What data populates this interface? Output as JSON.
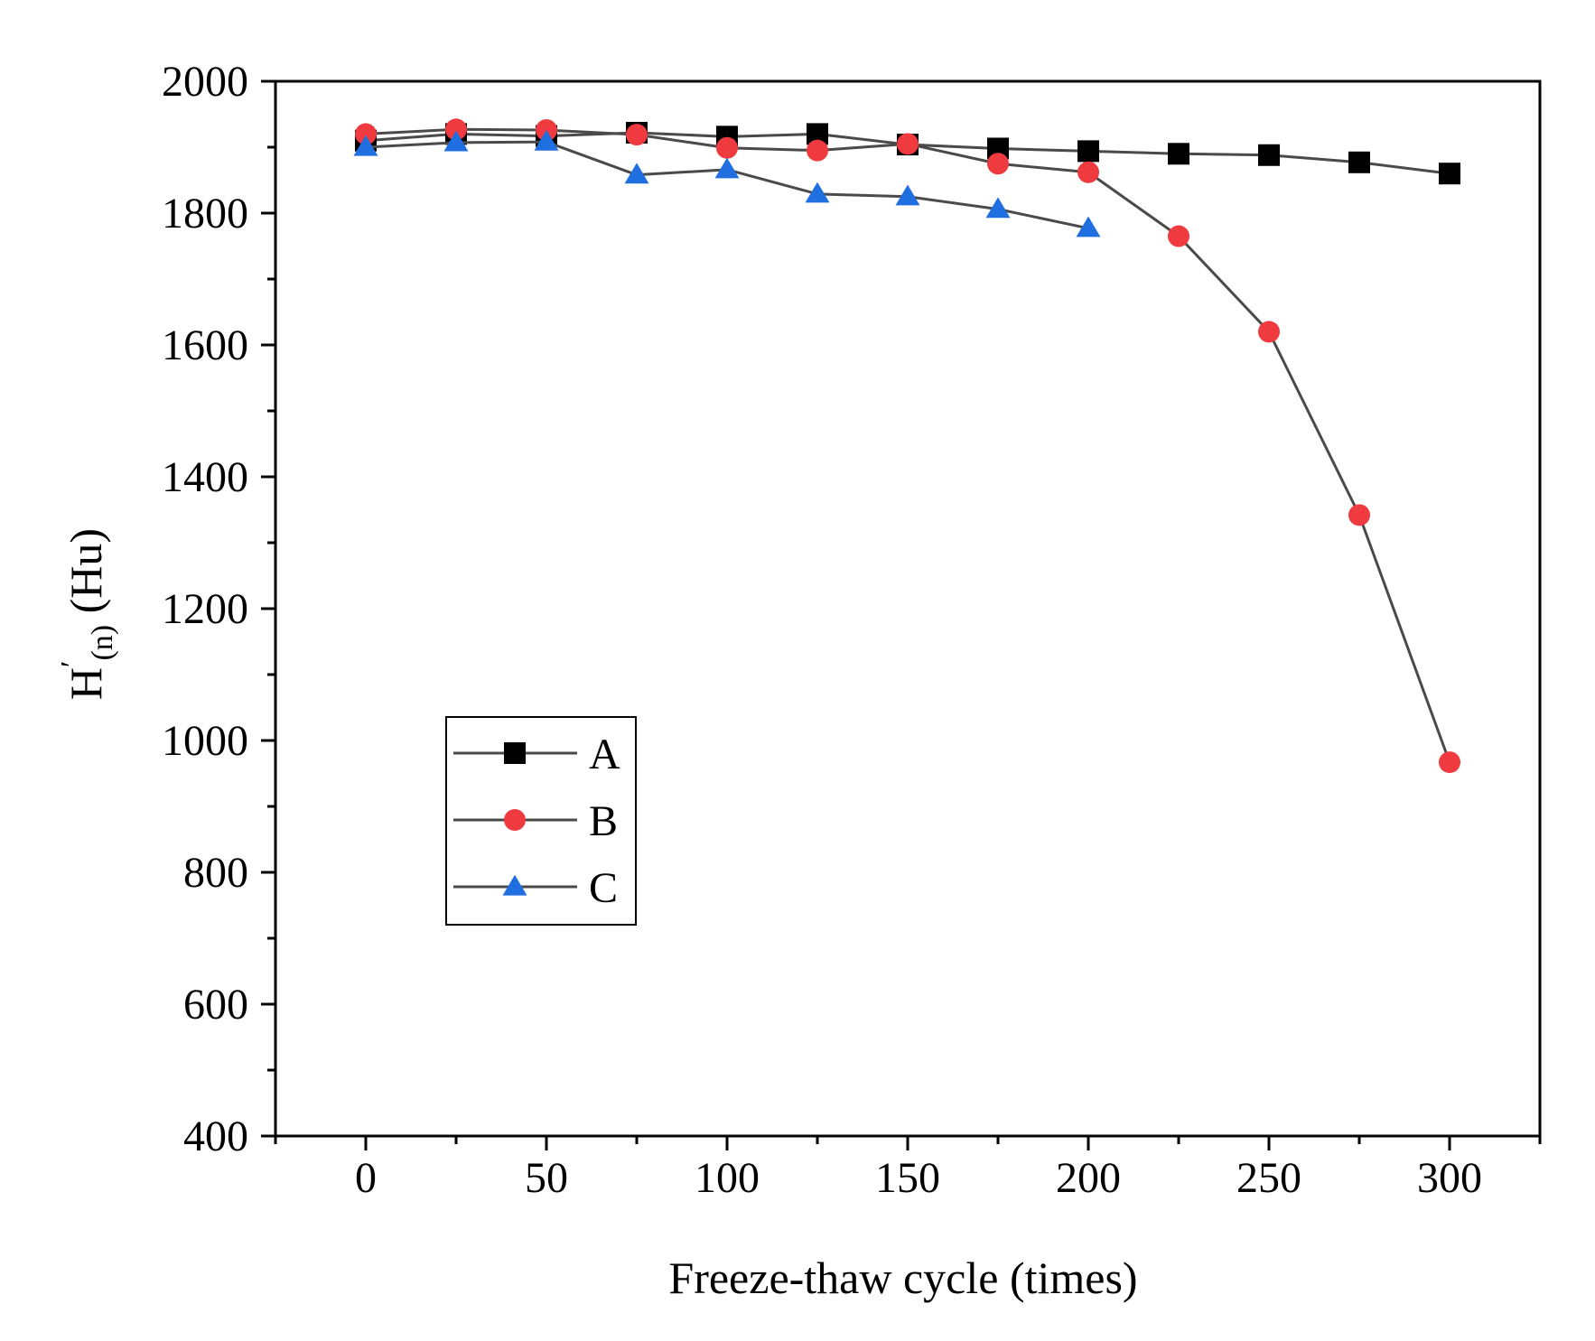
{
  "chart_data": {
    "type": "line",
    "xlabel": "Freeze-thaw cycle (times)",
    "ylabel": {
      "prefix": "H",
      "prime": "′",
      "subscript": "(n)",
      "suffix": " (Hu)"
    },
    "xlim": [
      -25,
      325
    ],
    "ylim": [
      400,
      2000
    ],
    "xticks": [
      0,
      50,
      100,
      150,
      200,
      250,
      300
    ],
    "yticks": [
      400,
      600,
      800,
      1000,
      1200,
      1400,
      1600,
      1800,
      2000
    ],
    "x_minor_step": 25,
    "y_minor_step": 100,
    "grid": false,
    "legend_position": "lower-left",
    "series": [
      {
        "name": "A",
        "marker": "square",
        "color": "#000000",
        "line_color": "#4a4a4a",
        "x": [
          0,
          25,
          50,
          75,
          100,
          125,
          150,
          175,
          200,
          225,
          250,
          275,
          300
        ],
        "y": [
          1910,
          1920,
          1917,
          1922,
          1916,
          1920,
          1904,
          1898,
          1894,
          1890,
          1888,
          1877,
          1860
        ]
      },
      {
        "name": "B",
        "marker": "circle",
        "color": "#ef3b3f",
        "line_color": "#4a4a4a",
        "x": [
          0,
          25,
          50,
          75,
          100,
          125,
          150,
          175,
          200,
          225,
          250,
          275,
          300
        ],
        "y": [
          1920,
          1927,
          1926,
          1919,
          1899,
          1895,
          1905,
          1875,
          1862,
          1765,
          1620,
          1342,
          967
        ]
      },
      {
        "name": "C",
        "marker": "triangle",
        "color": "#1f6fe0",
        "line_color": "#4a4a4a",
        "x": [
          0,
          25,
          50,
          75,
          100,
          125,
          150,
          175,
          200
        ],
        "y": [
          1900,
          1907,
          1908,
          1858,
          1866,
          1829,
          1825,
          1806,
          1777
        ]
      }
    ]
  }
}
